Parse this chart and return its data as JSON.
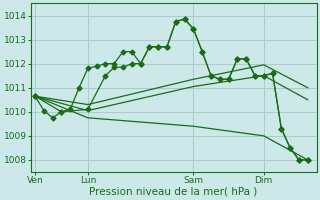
{
  "bg_color": "#cce8e8",
  "grid_color": "#aacccc",
  "line_color": "#1a6b1a",
  "marker_color": "#1a6b1a",
  "xlabel": "Pression niveau de la mer( hPa )",
  "xlabel_fontsize": 7.5,
  "ylim": [
    1007.5,
    1014.5
  ],
  "yticks": [
    1008,
    1009,
    1010,
    1011,
    1012,
    1013,
    1014
  ],
  "xtick_labels": [
    "Ven",
    "Lun",
    "Sam",
    "Dim"
  ],
  "xtick_positions": [
    0,
    6,
    18,
    26
  ],
  "vline_positions": [
    0,
    6,
    18,
    26
  ],
  "xlim": [
    -0.5,
    32
  ],
  "series1_x": [
    0,
    1,
    2,
    3,
    4,
    5,
    6,
    7,
    8,
    9,
    10,
    11,
    12,
    13,
    14,
    15,
    16,
    17,
    18,
    19,
    20,
    21,
    22,
    23,
    24,
    25,
    26,
    27,
    28,
    29,
    30,
    31
  ],
  "series1_y": [
    1010.65,
    1010.05,
    1009.75,
    1010.0,
    1010.1,
    1011.0,
    1011.8,
    1011.9,
    1012.0,
    1012.0,
    1012.5,
    1012.5,
    1012.0,
    1012.7,
    1012.7,
    1012.7,
    1013.75,
    1013.85,
    1013.45,
    1012.5,
    1011.5,
    1011.35,
    1011.35,
    1012.2,
    1012.2,
    1011.5,
    1011.5,
    1011.6,
    1009.3,
    1008.5,
    1008.0,
    1008.0
  ],
  "series2_x": [
    0,
    6,
    18,
    26,
    31
  ],
  "series2_y": [
    1010.65,
    1010.3,
    1011.35,
    1011.95,
    1011.0
  ],
  "series3_x": [
    0,
    6,
    18,
    26,
    31
  ],
  "series3_y": [
    1010.65,
    1010.05,
    1011.05,
    1011.5,
    1010.5
  ],
  "series4_x": [
    0,
    6,
    18,
    26,
    31
  ],
  "series4_y": [
    1010.65,
    1009.75,
    1009.4,
    1009.0,
    1008.0
  ],
  "series5_x": [
    0,
    3,
    6,
    8,
    9,
    10,
    11,
    12,
    13,
    14,
    15,
    16,
    17,
    18,
    19,
    20,
    21,
    22,
    23,
    24,
    25,
    26,
    27,
    28,
    29,
    30,
    31
  ],
  "series5_y": [
    1010.65,
    1010.0,
    1010.1,
    1011.5,
    1011.85,
    1011.85,
    1012.0,
    1012.0,
    1012.7,
    1012.7,
    1012.7,
    1013.75,
    1013.85,
    1013.45,
    1012.5,
    1011.5,
    1011.35,
    1011.35,
    1012.2,
    1012.2,
    1011.5,
    1011.5,
    1011.6,
    1009.3,
    1008.5,
    1008.0,
    1008.0
  ]
}
